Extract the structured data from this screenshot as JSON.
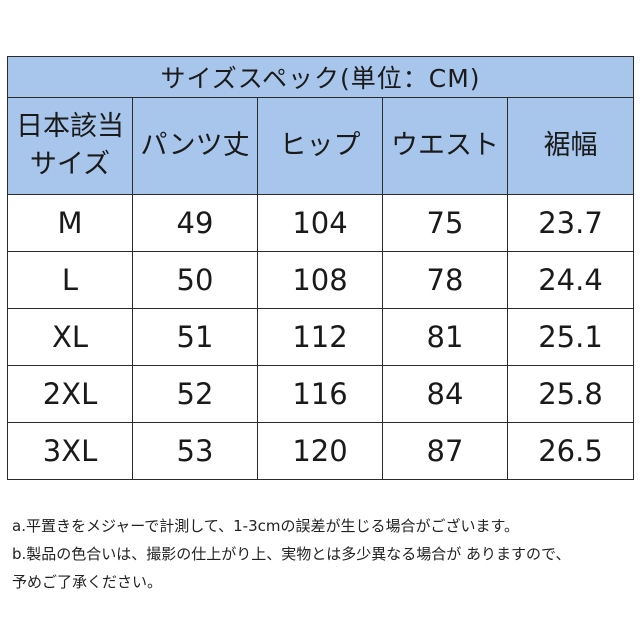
{
  "table": {
    "title": "サイズスペック(単位：CM)",
    "headers": [
      {
        "line1": "日本該当",
        "line2": "サイズ"
      },
      {
        "line1": "パンツ丈",
        "line2": ""
      },
      {
        "line1": "ヒップ",
        "line2": ""
      },
      {
        "line1": "ウエスト",
        "line2": ""
      },
      {
        "line1": "裾幅",
        "line2": ""
      }
    ],
    "rows": [
      [
        "M",
        "49",
        "104",
        "75",
        "23.7"
      ],
      [
        "L",
        "50",
        "108",
        "78",
        "24.4"
      ],
      [
        "XL",
        "51",
        "112",
        "81",
        "25.1"
      ],
      [
        "2XL",
        "52",
        "116",
        "84",
        "25.8"
      ],
      [
        "3XL",
        "53",
        "120",
        "87",
        "26.5"
      ]
    ]
  },
  "notes": [
    "a.平置きをメジャーで計測して、1-3cmの誤差が生じる場合がございます。",
    "b.製品の色合いは、撮影の仕上がり上、実物とは多少異なる場合が ありますので、",
    "予めご了承ください。"
  ],
  "colors": {
    "header_bg": "#a8c6ec",
    "border": "#2b2b2b"
  }
}
